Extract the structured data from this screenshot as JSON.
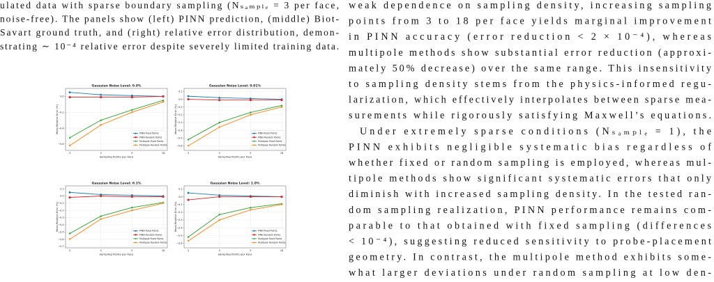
{
  "caption_lines": [
    "ulated data with sparse boundary sampling (Nₛₐₘₚₗₑ = 3 per face,",
    "noise-free). The panels show (left) PINN prediction, (middle) Biot-",
    "Savart ground truth, and (right) relative error distribution, demon-",
    "strating ∼ 10⁻⁴ relative error despite severely limited training data."
  ],
  "body_paragraphs": [
    [
      "weak dependence on sampling density, increasing sampling",
      "points from 3 to 18 per face yields marginal improvement",
      "in PINN accuracy (error reduction < 2 × 10⁻⁴), whereas",
      "multipole methods show substantial error reduction (approxi-",
      "mately 50% decrease) over the same range. This insensitivity",
      "to sampling density stems from the physics-informed regu-",
      "larization, which effectively interpolates between sparse mea-",
      "surements while rigorously satisfying Maxwell’s equations."
    ],
    [
      "Under extremely sparse conditions (Nₛₐₘₚₗₑ = 1), the",
      "PINN exhibits negligible systematic bias regardless of",
      "whether fixed or random sampling is employed, whereas mul-",
      "tipole methods show significant systematic errors that only",
      "diminish with increased sampling density. In the tested ran-",
      "dom sampling realization, PINN performance remains com-",
      "parable to that obtained with fixed sampling (differences",
      "< 10⁻⁴), suggesting reduced sensitivity to probe-placement",
      "geometry. In contrast, the multipole method exhibits some-",
      "what larger deviations under random sampling at low den-"
    ]
  ],
  "chart_data": [
    {
      "type": "line",
      "title": "Gaussian Noise Level: 0.0%",
      "x_label": "Sampling Points per Face",
      "y_label": "Mean Relative Error (%)",
      "categories": [
        "3",
        "5",
        "9",
        "18"
      ],
      "ylim": [
        -0.68,
        0.1
      ],
      "grid": true,
      "legend": "lower right",
      "yticks": [
        {
          "value": 0,
          "label": "0.0"
        },
        {
          "value": -0.2,
          "label": "−0.2"
        },
        {
          "value": -0.4,
          "label": "−0.4"
        },
        {
          "value": -0.6,
          "label": "−0.6"
        }
      ],
      "series": [
        {
          "name": "PINN Fixed Points",
          "color": "#1f77b4",
          "marker": "circle",
          "values": [
            0.05,
            0.02,
            0.01,
            0.0
          ]
        },
        {
          "name": "PINN Random Points",
          "color": "#d62728",
          "marker": "square",
          "values": [
            -0.01,
            -0.01,
            -0.01,
            0.0
          ]
        },
        {
          "name": "Multipole Fixed Points",
          "color": "#2ca02c",
          "marker": "triangle-up",
          "values": [
            -0.52,
            -0.3,
            -0.17,
            -0.05
          ]
        },
        {
          "name": "Multipole Random Points",
          "color": "#ff7f0e",
          "marker": "triangle-down",
          "values": [
            -0.62,
            -0.36,
            -0.2,
            -0.07
          ]
        }
      ]
    },
    {
      "type": "line",
      "title": "Gaussian Noise Level: 0.01%",
      "x_label": "Sampling Points per Face",
      "y_label": "Mean Relative Error (%)",
      "categories": [
        "3",
        "5",
        "9",
        "18"
      ],
      "ylim": [
        -0.66,
        0.14
      ],
      "grid": true,
      "legend": "lower right",
      "yticks": [
        0.1,
        {
          "value": 0,
          "label": "0.0"
        },
        {
          "value": -0.1,
          "label": "−0.1"
        },
        {
          "value": -0.2,
          "label": "−0.2"
        },
        {
          "value": -0.3,
          "label": "−0.3"
        },
        {
          "value": -0.4,
          "label": "−0.4"
        },
        {
          "value": -0.5,
          "label": "−0.5"
        },
        {
          "value": -0.6,
          "label": "−0.6"
        }
      ],
      "series": [
        {
          "name": "PINN Fixed Points",
          "color": "#1f77b4",
          "marker": "circle",
          "values": [
            0.04,
            0.02,
            0.01,
            0.0
          ]
        },
        {
          "name": "PINN Random Points",
          "color": "#d62728",
          "marker": "square",
          "values": [
            0.0,
            -0.01,
            -0.01,
            -0.01
          ]
        },
        {
          "name": "Multipole Fixed Points",
          "color": "#2ca02c",
          "marker": "triangle-up",
          "values": [
            -0.52,
            -0.3,
            -0.17,
            -0.08
          ]
        },
        {
          "name": "Multipole Random Points",
          "color": "#ff7f0e",
          "marker": "triangle-down",
          "values": [
            -0.6,
            -0.36,
            -0.2,
            -0.1
          ]
        }
      ]
    },
    {
      "type": "line",
      "title": "Gaussian Noise Level: 0.1%",
      "x_label": "Sampling Points per Face",
      "y_label": "Mean Relative Error (%)",
      "categories": [
        "3",
        "5",
        "9",
        "18"
      ],
      "ylim": [
        -0.72,
        0.14
      ],
      "grid": true,
      "legend": "lower right",
      "yticks": [
        0.1,
        {
          "value": 0,
          "label": "0.0"
        },
        {
          "value": -0.1,
          "label": "−0.1"
        },
        {
          "value": -0.2,
          "label": "−0.2"
        },
        {
          "value": -0.3,
          "label": "−0.3"
        },
        {
          "value": -0.4,
          "label": "−0.4"
        },
        {
          "value": -0.5,
          "label": "−0.5"
        },
        {
          "value": -0.6,
          "label": "−0.6"
        },
        {
          "value": -0.7,
          "label": "−0.7"
        }
      ],
      "series": [
        {
          "name": "PINN Fixed Points",
          "color": "#1f77b4",
          "marker": "circle",
          "values": [
            0.05,
            0.02,
            0.01,
            0.0
          ]
        },
        {
          "name": "PINN Random Points",
          "color": "#d62728",
          "marker": "square",
          "values": [
            -0.02,
            0.0,
            -0.01,
            -0.01
          ]
        },
        {
          "name": "Multipole Fixed Points",
          "color": "#2ca02c",
          "marker": "triangle-up",
          "values": [
            -0.52,
            -0.28,
            -0.16,
            -0.09
          ]
        },
        {
          "name": "Multipole Random Points",
          "color": "#ff7f0e",
          "marker": "triangle-down",
          "values": [
            -0.6,
            -0.32,
            -0.2,
            -0.1
          ]
        }
      ]
    },
    {
      "type": "line",
      "title": "Gaussian Noise Level: 1.0%",
      "x_label": "Sampling Points per Face",
      "y_label": "Mean Relative Error (%)",
      "categories": [
        "3",
        "5",
        "9",
        "18"
      ],
      "ylim": [
        -0.66,
        0.14
      ],
      "grid": true,
      "legend": "lower right",
      "yticks": [
        0.1,
        {
          "value": 0,
          "label": "0.0"
        },
        {
          "value": -0.1,
          "label": "−0.1"
        },
        {
          "value": -0.2,
          "label": "−0.2"
        },
        {
          "value": -0.3,
          "label": "−0.3"
        },
        {
          "value": -0.4,
          "label": "−0.4"
        },
        {
          "value": -0.5,
          "label": "−0.5"
        },
        {
          "value": -0.6,
          "label": "−0.6"
        }
      ],
      "series": [
        {
          "name": "PINN Fixed Points",
          "color": "#1f77b4",
          "marker": "circle",
          "values": [
            0.05,
            0.02,
            0.01,
            0.0
          ]
        },
        {
          "name": "PINN Random Points",
          "color": "#d62728",
          "marker": "square",
          "values": [
            -0.04,
            0.0,
            0.0,
            0.0
          ]
        },
        {
          "name": "Multipole Fixed Points",
          "color": "#2ca02c",
          "marker": "triangle-up",
          "values": [
            -0.52,
            -0.23,
            -0.14,
            -0.09
          ]
        },
        {
          "name": "Multipole Random Points",
          "color": "#ff7f0e",
          "marker": "triangle-down",
          "values": [
            -0.57,
            -0.3,
            -0.17,
            -0.1
          ]
        }
      ]
    }
  ]
}
